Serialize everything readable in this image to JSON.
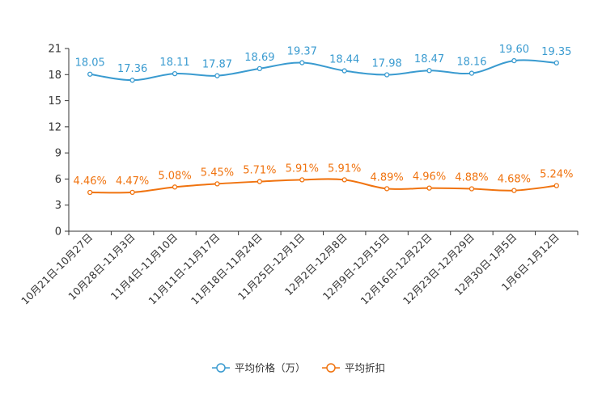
{
  "chart_data": {
    "type": "line",
    "title": "",
    "xlabel": "",
    "ylabel": "",
    "ylim": [
      0,
      21
    ],
    "yticks": [
      0,
      3,
      6,
      9,
      12,
      15,
      18,
      21
    ],
    "grid": false,
    "legend_position": "bottom-center",
    "categories": [
      "10月21日-10月27日",
      "10月28日-11月3日",
      "11月4日-11月10日",
      "11月11日-11月17日",
      "11月18日-11月24日",
      "11月25日-12月1日",
      "12月2日-12月8日",
      "12月9日-12月15日",
      "12月16日-12月22日",
      "12月23日-12月29日",
      "12月30日-1月5日",
      "1月6日-1月12日"
    ],
    "series": [
      {
        "name": "平均价格（万）",
        "color": "#3a9bd0",
        "values": [
          18.05,
          17.36,
          18.11,
          17.87,
          18.69,
          19.37,
          18.44,
          17.98,
          18.47,
          18.16,
          19.6,
          19.35
        ],
        "labels": [
          "18.05",
          "17.36",
          "18.11",
          "17.87",
          "18.69",
          "19.37",
          "18.44",
          "17.98",
          "18.47",
          "18.16",
          "19.60",
          "19.35"
        ]
      },
      {
        "name": "平均折扣",
        "color": "#f0730f",
        "values": [
          4.46,
          4.47,
          5.08,
          5.45,
          5.71,
          5.91,
          5.91,
          4.89,
          4.96,
          4.88,
          4.68,
          5.24
        ],
        "labels": [
          "4.46%",
          "4.47%",
          "5.08%",
          "5.45%",
          "5.71%",
          "5.91%",
          "5.91%",
          "4.89%",
          "4.96%",
          "4.88%",
          "4.68%",
          "5.24%"
        ]
      }
    ]
  }
}
